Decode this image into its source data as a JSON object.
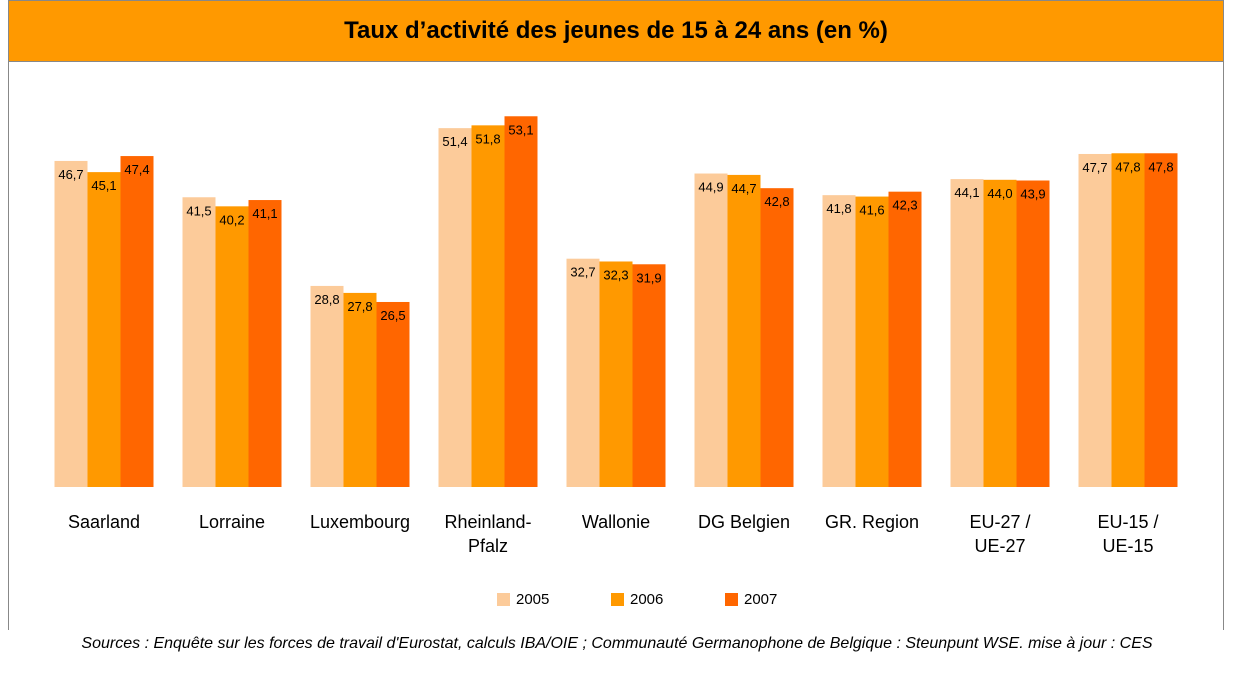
{
  "chart_data": {
    "type": "bar",
    "title": "Taux d’activité des jeunes de 15 à 24 ans (en %)",
    "categories": [
      "Saarland",
      "Lorraine",
      "Luxembourg",
      "Rheinland-\nPfalz",
      "Wallonie",
      "DG Belgien",
      "GR. Region",
      "EU-27 /\nUE-27",
      "EU-15 /\nUE-15"
    ],
    "series": [
      {
        "name": "2005",
        "color": "#FCCB9A",
        "values": [
          46.7,
          41.5,
          28.8,
          51.4,
          32.7,
          44.9,
          41.8,
          44.1,
          47.7
        ],
        "value_labels": [
          "46,7",
          "41,5",
          "28,8",
          "51,4",
          "32,7",
          "44,9",
          "41,8",
          "44,1",
          "47,7"
        ]
      },
      {
        "name": "2006",
        "color": "#FF9900",
        "values": [
          45.1,
          40.2,
          27.8,
          51.8,
          32.3,
          44.7,
          41.6,
          44.0,
          47.8
        ],
        "value_labels": [
          "45,1",
          "40,2",
          "27,8",
          "51,8",
          "32,3",
          "44,7",
          "41,6",
          "44,0",
          "47,8"
        ]
      },
      {
        "name": "2007",
        "color": "#FF6600",
        "values": [
          47.4,
          41.1,
          26.5,
          53.1,
          31.9,
          42.8,
          42.3,
          43.9,
          47.8
        ],
        "value_labels": [
          "47,4",
          "41,1",
          "26,5",
          "53,1",
          "31,9",
          "42,8",
          "42,3",
          "43,9",
          "47,8"
        ]
      }
    ],
    "ylim": [
      0,
      55
    ],
    "source": "Sources : Enquête sur les forces de travail d'Eurostat, calculs IBA/OIE ; Communauté Germanophone de Belgique : Steunpunt WSE. mise à jour : CES"
  }
}
